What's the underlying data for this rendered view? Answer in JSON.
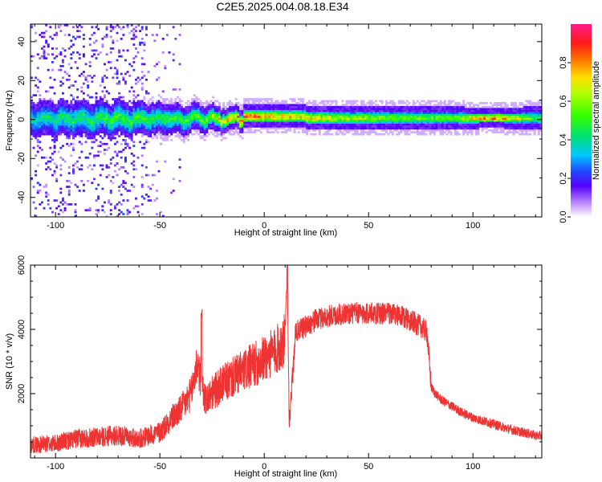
{
  "title": "C2E5.2025.004.08.18.E34",
  "colors": {
    "snr_line": "#ee3333",
    "axis": "#000000",
    "spectro_low": "#e9d8ff",
    "spectro_mid": "#7a28ff",
    "spectro_band": "#1aa0ff",
    "spectro_high": "#ff2a55"
  },
  "chart_data": [
    {
      "type": "heatmap",
      "xlabel": "Height of straight line (km)",
      "ylabel": "Frequency (Hz)",
      "xlim": [
        -112,
        133
      ],
      "ylim": [
        -50,
        49
      ],
      "xticks": [
        -100,
        -50,
        0,
        50,
        100
      ],
      "yticks": [
        40,
        20,
        0,
        -20,
        -40
      ],
      "x_tick_labels": [
        "-100",
        "-50",
        "0",
        "50",
        "100"
      ],
      "y_tick_labels": [
        "40",
        "20",
        "0",
        "-20",
        "-40"
      ],
      "grid": false,
      "description_band": "Energy concentrated near 0 Hz; broad noisy spread at heights below about -55 km, narrowing to a tight band above about -10 km, with peaks (red) near -12 km, 8 km and 100-115 km.",
      "band_profile": [
        {
          "x": -110,
          "width_hz": 6,
          "amp": 0.45
        },
        {
          "x": -90,
          "width_hz": 6,
          "amp": 0.5
        },
        {
          "x": -70,
          "width_hz": 6,
          "amp": 0.55
        },
        {
          "x": -50,
          "width_hz": 5,
          "amp": 0.55
        },
        {
          "x": -30,
          "width_hz": 4,
          "amp": 0.6
        },
        {
          "x": -12,
          "width_hz": 3,
          "amp": 0.95
        },
        {
          "x": 8,
          "width_hz": 3,
          "amp": 0.85
        },
        {
          "x": 40,
          "width_hz": 3,
          "amp": 0.7
        },
        {
          "x": 90,
          "width_hz": 3,
          "amp": 0.6
        },
        {
          "x": 108,
          "width_hz": 2,
          "amp": 1.0
        },
        {
          "x": 130,
          "width_hz": 3,
          "amp": 0.55
        }
      ]
    },
    {
      "type": "colorbar",
      "label": "Normalized spectral amplitude",
      "range": [
        0,
        1
      ],
      "ticks": [
        0.0,
        0.2,
        0.4,
        0.6,
        0.8
      ],
      "tick_labels": [
        "0.0",
        "0.2",
        "0.4",
        "0.6",
        "0.8"
      ],
      "colormap": "rainbow (white-violet-blue-cyan-green-yellow-red-magenta)"
    },
    {
      "type": "line",
      "xlabel": "Height of straight line (km)",
      "ylabel": "SNR (10 * v/v)",
      "xlim": [
        -112,
        133
      ],
      "ylim": [
        0,
        6000
      ],
      "xticks": [
        -100,
        -50,
        0,
        50,
        100
      ],
      "yticks": [
        2000,
        4000,
        6000
      ],
      "x_tick_labels": [
        "-100",
        "-50",
        "0",
        "50",
        "100"
      ],
      "y_tick_labels": [
        "2000",
        "4000",
        "6000"
      ],
      "grid": false,
      "series": [
        {
          "x": [
            -112,
            -100,
            -90,
            -80,
            -70,
            -60,
            -55,
            -50,
            -45,
            -40,
            -35,
            -32,
            -30,
            -28,
            -25,
            -20,
            -15,
            -10,
            -5,
            0,
            5,
            8,
            10,
            11,
            12,
            15,
            20,
            25,
            30,
            40,
            50,
            60,
            65,
            70,
            72,
            75,
            78,
            80,
            82,
            85,
            90,
            95,
            100,
            105,
            110,
            115,
            120,
            125,
            130,
            133
          ],
          "y": [
            400,
            450,
            600,
            650,
            700,
            600,
            700,
            800,
            1200,
            1500,
            2000,
            3000,
            2200,
            1800,
            2000,
            2300,
            2500,
            2700,
            2900,
            3100,
            3300,
            3500,
            3700,
            6000,
            1000,
            3900,
            4100,
            4300,
            4400,
            4500,
            4500,
            4500,
            4400,
            4300,
            4200,
            4100,
            3900,
            2200,
            2000,
            1800,
            1600,
            1400,
            1250,
            1150,
            1050,
            950,
            850,
            780,
            700,
            680
          ]
        }
      ]
    }
  ]
}
